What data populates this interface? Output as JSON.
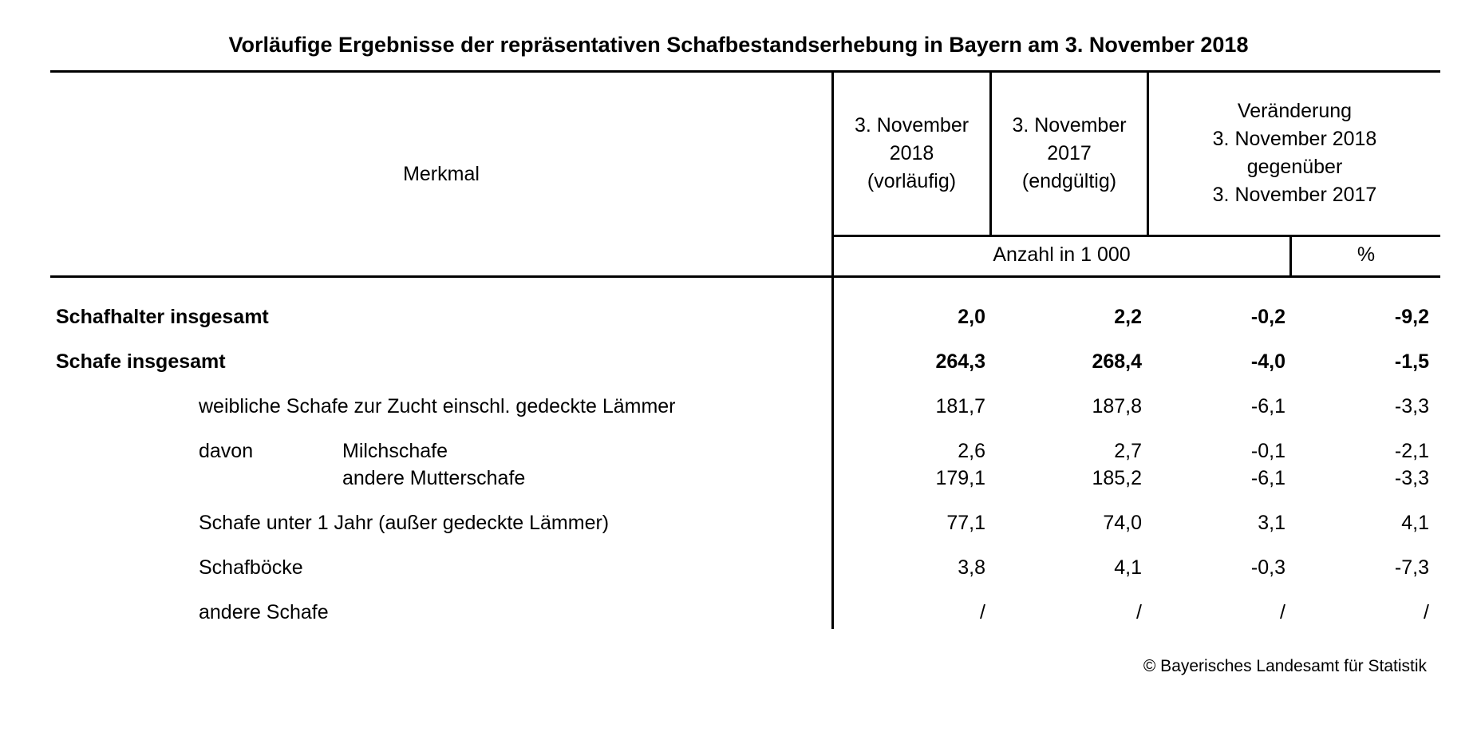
{
  "title": "Vorläufige Ergebnisse der repräsentativen Schafbestandserhebung in Bayern am 3. November 2018",
  "header": {
    "merkmal": "Merkmal",
    "col1": [
      "3. November",
      "2018",
      "(vorläufig)"
    ],
    "col2": [
      "3. November",
      "2017",
      "(endgültig)"
    ],
    "col3": [
      "Veränderung",
      "3. November 2018",
      "gegenüber",
      "3. November 2017"
    ],
    "unit_count": "Anzahl in 1 000",
    "unit_pct": "%"
  },
  "rows": [
    {
      "label": "Schafhalter insgesamt",
      "v2018": "2,0",
      "v2017": "2,2",
      "diff": "-0,2",
      "pct": "-9,2"
    },
    {
      "label": "Schafe insgesamt",
      "v2018": "264,3",
      "v2017": "268,4",
      "diff": "-4,0",
      "pct": "-1,5"
    },
    {
      "label": "weibliche Schafe zur Zucht einschl. gedeckte Lämmer",
      "v2018": "181,7",
      "v2017": "187,8",
      "diff": "-6,1",
      "pct": "-3,3"
    },
    {
      "prefix": "davon",
      "label": "Milchschafe",
      "v2018": "2,6",
      "v2017": "2,7",
      "diff": "-0,1",
      "pct": "-2,1"
    },
    {
      "label": "andere Mutterschafe",
      "v2018": "179,1",
      "v2017": "185,2",
      "diff": "-6,1",
      "pct": "-3,3"
    },
    {
      "label": "Schafe unter 1 Jahr (außer gedeckte Lämmer)",
      "v2018": "77,1",
      "v2017": "74,0",
      "diff": "3,1",
      "pct": "4,1"
    },
    {
      "label": "Schafböcke",
      "v2018": "3,8",
      "v2017": "4,1",
      "diff": "-0,3",
      "pct": "-7,3"
    },
    {
      "label": "andere Schafe",
      "v2018": "/",
      "v2017": "/",
      "diff": "/",
      "pct": "/"
    }
  ],
  "footer": "© Bayerisches Landesamt für Statistik"
}
